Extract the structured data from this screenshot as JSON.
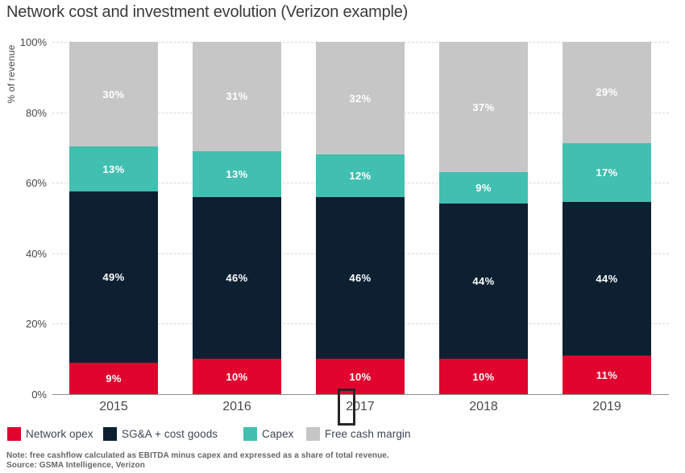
{
  "title": "Network cost and investment evolution (Verizon example)",
  "y_axis": {
    "label": "% of revenue",
    "ticks": [
      "100%",
      "80%",
      "60%",
      "40%",
      "20%",
      "0%"
    ]
  },
  "chart_data": {
    "type": "bar",
    "stacked": true,
    "title": "Network cost and investment evolution (Verizon example)",
    "ylabel": "% of revenue",
    "ylim": [
      0,
      100
    ],
    "grid": "horizontal dashed",
    "legend_position": "bottom",
    "value_label_format": "{value}%",
    "categories": [
      "2015",
      "2016",
      "2017",
      "2018",
      "2019"
    ],
    "series": [
      {
        "name": "Network opex",
        "color": "#e0042f",
        "values": [
          9,
          10,
          10,
          10,
          11
        ]
      },
      {
        "name": "SG&A + cost goods",
        "color": "#0c2032",
        "values": [
          49,
          46,
          46,
          44,
          44
        ]
      },
      {
        "name": "Capex",
        "color": "#41bfb0",
        "values": [
          13,
          13,
          12,
          9,
          17
        ]
      },
      {
        "name": "Free cash margin",
        "color": "#c6c6c6",
        "values": [
          30,
          31,
          32,
          37,
          29
        ]
      }
    ]
  },
  "notes": {
    "note": "Note: free cashflow calculated as EBITDA minus capex and expressed as a share of total revenue.",
    "source": "Source: GSMA Intelligence, Verizon"
  }
}
